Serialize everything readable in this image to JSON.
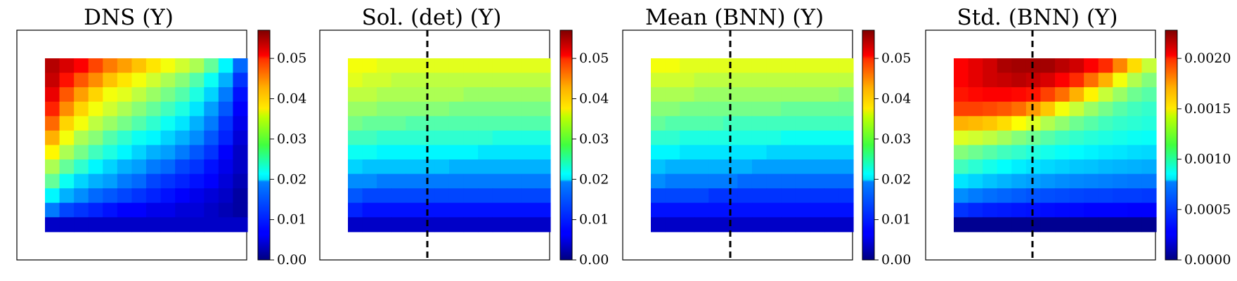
{
  "chart_data": [
    {
      "type": "heatmap",
      "title": "DNS (Y)",
      "colormap": "jet",
      "vmin": 0.0,
      "vmax": 0.057,
      "colorbar_ticks": [
        0.0,
        0.01,
        0.02,
        0.03,
        0.04,
        0.05
      ],
      "colorbar_tick_labels": [
        "0.00",
        "0.01",
        "0.02",
        "0.03",
        "0.04",
        "0.05"
      ],
      "dashed_line": false,
      "rows": [
        [
          0.054,
          0.052,
          0.05,
          0.046,
          0.043,
          0.041,
          0.039,
          0.037,
          0.035,
          0.033,
          0.031,
          0.027,
          0.021,
          0.013
        ],
        [
          0.053,
          0.049,
          0.045,
          0.042,
          0.039,
          0.037,
          0.035,
          0.033,
          0.031,
          0.029,
          0.026,
          0.022,
          0.017,
          0.01
        ],
        [
          0.051,
          0.045,
          0.041,
          0.038,
          0.035,
          0.034,
          0.032,
          0.03,
          0.028,
          0.026,
          0.023,
          0.019,
          0.014,
          0.008
        ],
        [
          0.048,
          0.042,
          0.038,
          0.035,
          0.033,
          0.031,
          0.029,
          0.027,
          0.025,
          0.023,
          0.02,
          0.016,
          0.012,
          0.007
        ],
        [
          0.044,
          0.038,
          0.035,
          0.032,
          0.03,
          0.028,
          0.026,
          0.024,
          0.022,
          0.02,
          0.017,
          0.014,
          0.01,
          0.006
        ],
        [
          0.04,
          0.035,
          0.031,
          0.029,
          0.026,
          0.024,
          0.022,
          0.021,
          0.019,
          0.017,
          0.015,
          0.012,
          0.009,
          0.005
        ],
        [
          0.036,
          0.031,
          0.028,
          0.025,
          0.023,
          0.021,
          0.019,
          0.017,
          0.016,
          0.014,
          0.012,
          0.01,
          0.007,
          0.004
        ],
        [
          0.031,
          0.027,
          0.024,
          0.021,
          0.019,
          0.017,
          0.016,
          0.014,
          0.013,
          0.011,
          0.01,
          0.008,
          0.006,
          0.004
        ],
        [
          0.027,
          0.022,
          0.019,
          0.017,
          0.016,
          0.014,
          0.013,
          0.011,
          0.01,
          0.009,
          0.008,
          0.007,
          0.005,
          0.003
        ],
        [
          0.021,
          0.017,
          0.015,
          0.013,
          0.012,
          0.011,
          0.01,
          0.009,
          0.008,
          0.007,
          0.006,
          0.005,
          0.004,
          0.002
        ],
        [
          0.014,
          0.011,
          0.01,
          0.009,
          0.008,
          0.007,
          0.007,
          0.006,
          0.006,
          0.005,
          0.005,
          0.004,
          0.003,
          0.002
        ],
        [
          0.004,
          0.004,
          0.004,
          0.004,
          0.004,
          0.004,
          0.004,
          0.004,
          0.004,
          0.004,
          0.004,
          0.004,
          0.004,
          0.004
        ]
      ]
    },
    {
      "type": "heatmap",
      "title": "Sol. (det) (Y)",
      "colormap": "jet",
      "vmin": 0.0,
      "vmax": 0.057,
      "colorbar_ticks": [
        0.0,
        0.01,
        0.02,
        0.03,
        0.04,
        0.05
      ],
      "colorbar_tick_labels": [
        "0.00",
        "0.01",
        "0.02",
        "0.03",
        "0.04",
        "0.05"
      ],
      "dashed_line": true,
      "rows": [
        [
          0.035,
          0.035,
          0.034,
          0.034,
          0.034,
          0.034,
          0.034,
          0.034,
          0.034,
          0.034,
          0.034,
          0.034,
          0.034,
          0.034
        ],
        [
          0.034,
          0.033,
          0.033,
          0.032,
          0.032,
          0.032,
          0.032,
          0.032,
          0.032,
          0.032,
          0.032,
          0.032,
          0.032,
          0.032
        ],
        [
          0.032,
          0.032,
          0.031,
          0.031,
          0.031,
          0.031,
          0.031,
          0.031,
          0.03,
          0.03,
          0.03,
          0.03,
          0.03,
          0.03
        ],
        [
          0.03,
          0.03,
          0.029,
          0.029,
          0.029,
          0.029,
          0.029,
          0.028,
          0.028,
          0.028,
          0.028,
          0.028,
          0.028,
          0.028
        ],
        [
          0.028,
          0.027,
          0.027,
          0.027,
          0.026,
          0.026,
          0.026,
          0.026,
          0.026,
          0.026,
          0.026,
          0.026,
          0.026,
          0.026
        ],
        [
          0.025,
          0.025,
          0.024,
          0.024,
          0.024,
          0.024,
          0.024,
          0.024,
          0.024,
          0.024,
          0.023,
          0.023,
          0.023,
          0.023
        ],
        [
          0.022,
          0.022,
          0.021,
          0.021,
          0.021,
          0.021,
          0.021,
          0.021,
          0.021,
          0.02,
          0.02,
          0.02,
          0.02,
          0.02
        ],
        [
          0.019,
          0.018,
          0.018,
          0.018,
          0.018,
          0.018,
          0.018,
          0.017,
          0.017,
          0.017,
          0.017,
          0.017,
          0.017,
          0.017
        ],
        [
          0.015,
          0.015,
          0.014,
          0.014,
          0.014,
          0.014,
          0.014,
          0.014,
          0.014,
          0.014,
          0.014,
          0.014,
          0.014,
          0.014
        ],
        [
          0.012,
          0.011,
          0.011,
          0.011,
          0.011,
          0.011,
          0.011,
          0.011,
          0.011,
          0.011,
          0.011,
          0.011,
          0.011,
          0.011
        ],
        [
          0.009,
          0.008,
          0.008,
          0.008,
          0.008,
          0.008,
          0.008,
          0.008,
          0.008,
          0.008,
          0.008,
          0.008,
          0.008,
          0.008
        ],
        [
          0.004,
          0.004,
          0.004,
          0.004,
          0.004,
          0.004,
          0.004,
          0.004,
          0.004,
          0.004,
          0.004,
          0.004,
          0.004,
          0.004
        ]
      ]
    },
    {
      "type": "heatmap",
      "title": "Mean (BNN) (Y)",
      "colormap": "jet",
      "vmin": 0.0,
      "vmax": 0.057,
      "colorbar_ticks": [
        0.0,
        0.01,
        0.02,
        0.03,
        0.04,
        0.05
      ],
      "colorbar_tick_labels": [
        "0.00",
        "0.01",
        "0.02",
        "0.03",
        "0.04",
        "0.05"
      ],
      "dashed_line": true,
      "rows": [
        [
          0.035,
          0.035,
          0.034,
          0.034,
          0.034,
          0.034,
          0.034,
          0.034,
          0.034,
          0.034,
          0.034,
          0.034,
          0.034,
          0.034
        ],
        [
          0.033,
          0.033,
          0.033,
          0.032,
          0.032,
          0.032,
          0.032,
          0.032,
          0.032,
          0.032,
          0.032,
          0.032,
          0.032,
          0.032
        ],
        [
          0.031,
          0.031,
          0.031,
          0.03,
          0.03,
          0.03,
          0.03,
          0.03,
          0.03,
          0.03,
          0.03,
          0.03,
          0.03,
          0.029
        ],
        [
          0.029,
          0.029,
          0.028,
          0.028,
          0.028,
          0.028,
          0.028,
          0.028,
          0.028,
          0.027,
          0.027,
          0.027,
          0.027,
          0.027
        ],
        [
          0.027,
          0.026,
          0.026,
          0.026,
          0.026,
          0.025,
          0.025,
          0.025,
          0.025,
          0.025,
          0.025,
          0.025,
          0.025,
          0.025
        ],
        [
          0.024,
          0.024,
          0.023,
          0.023,
          0.023,
          0.023,
          0.023,
          0.023,
          0.023,
          0.022,
          0.022,
          0.022,
          0.022,
          0.022
        ],
        [
          0.021,
          0.021,
          0.02,
          0.02,
          0.02,
          0.02,
          0.02,
          0.02,
          0.019,
          0.019,
          0.019,
          0.019,
          0.019,
          0.019
        ],
        [
          0.018,
          0.017,
          0.017,
          0.017,
          0.017,
          0.017,
          0.017,
          0.016,
          0.016,
          0.016,
          0.016,
          0.016,
          0.016,
          0.016
        ],
        [
          0.015,
          0.014,
          0.014,
          0.014,
          0.014,
          0.014,
          0.013,
          0.013,
          0.013,
          0.013,
          0.013,
          0.013,
          0.013,
          0.013
        ],
        [
          0.011,
          0.011,
          0.011,
          0.011,
          0.01,
          0.01,
          0.01,
          0.01,
          0.01,
          0.01,
          0.01,
          0.01,
          0.01,
          0.01
        ],
        [
          0.008,
          0.008,
          0.008,
          0.008,
          0.008,
          0.008,
          0.008,
          0.008,
          0.008,
          0.008,
          0.008,
          0.008,
          0.008,
          0.008
        ],
        [
          0.004,
          0.004,
          0.004,
          0.004,
          0.004,
          0.004,
          0.004,
          0.004,
          0.004,
          0.004,
          0.004,
          0.004,
          0.004,
          0.004
        ]
      ]
    },
    {
      "type": "heatmap",
      "title": "Std. (BNN) (Y)",
      "colormap": "jet",
      "vmin": 0.0,
      "vmax": 0.00228,
      "colorbar_ticks": [
        0.0,
        0.0005,
        0.001,
        0.0015,
        0.002
      ],
      "colorbar_tick_labels": [
        "0.0000",
        "0.0005",
        "0.0010",
        "0.0015",
        "0.0020"
      ],
      "dashed_line": true,
      "rows": [
        [
          0.002,
          0.00205,
          0.0021,
          0.00218,
          0.0022,
          0.0022,
          0.0022,
          0.00215,
          0.0021,
          0.002,
          0.0019,
          0.0017,
          0.0015,
          0.0013
        ],
        [
          0.002,
          0.00205,
          0.0021,
          0.00212,
          0.00215,
          0.00212,
          0.00208,
          0.002,
          0.0019,
          0.00175,
          0.0016,
          0.0014,
          0.00125,
          0.00115
        ],
        [
          0.00195,
          0.00198,
          0.002,
          0.002,
          0.00198,
          0.00195,
          0.00185,
          0.00175,
          0.0016,
          0.00145,
          0.0013,
          0.0012,
          0.0011,
          0.00105
        ],
        [
          0.00185,
          0.00185,
          0.00183,
          0.0018,
          0.00175,
          0.00165,
          0.00155,
          0.0014,
          0.0013,
          0.0012,
          0.00112,
          0.00105,
          0.001,
          0.00097
        ],
        [
          0.0016,
          0.00158,
          0.00155,
          0.0015,
          0.00142,
          0.00135,
          0.00125,
          0.00118,
          0.0011,
          0.00105,
          0.001,
          0.00097,
          0.00095,
          0.00093
        ],
        [
          0.00135,
          0.00132,
          0.00128,
          0.00122,
          0.00115,
          0.0011,
          0.00105,
          0.001,
          0.00097,
          0.00094,
          0.00092,
          0.0009,
          0.00088,
          0.00087
        ],
        [
          0.00115,
          0.0011,
          0.00105,
          0.001,
          0.00097,
          0.00093,
          0.0009,
          0.00087,
          0.00085,
          0.00083,
          0.00081,
          0.0008,
          0.00078,
          0.00077
        ],
        [
          0.001,
          0.00095,
          0.0009,
          0.00086,
          0.00082,
          0.00079,
          0.00077,
          0.00075,
          0.00073,
          0.00072,
          0.0007,
          0.00069,
          0.00068,
          0.00067
        ],
        [
          0.0008,
          0.00076,
          0.00072,
          0.00069,
          0.00066,
          0.00064,
          0.00062,
          0.0006,
          0.00059,
          0.00058,
          0.00057,
          0.00056,
          0.00055,
          0.00055
        ],
        [
          0.0006,
          0.00056,
          0.00053,
          0.00051,
          0.00049,
          0.00047,
          0.00046,
          0.00045,
          0.00044,
          0.00043,
          0.00043,
          0.00042,
          0.00042,
          0.00041
        ],
        [
          0.0004,
          0.00037,
          0.00035,
          0.00034,
          0.00033,
          0.00032,
          0.00031,
          0.0003,
          0.0003,
          0.00029,
          0.00029,
          0.00029,
          0.00028,
          0.00028
        ],
        [
          4e-05,
          4e-05,
          4e-05,
          4e-05,
          4e-05,
          4e-05,
          4e-05,
          4e-05,
          4e-05,
          4e-05,
          4e-05,
          4e-05,
          4e-05,
          4e-05
        ]
      ]
    }
  ]
}
